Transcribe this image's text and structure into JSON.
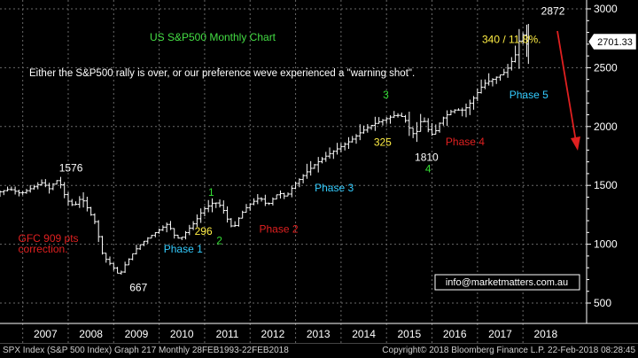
{
  "chart_data": {
    "type": "ohlc-bar",
    "title": "US S&P500 Monthly Chart",
    "subtitle": "Either the S&P500 rally is over, or our preference weve experienced a \"warning shot\".",
    "ylim": [
      450,
      3050
    ],
    "yticks": [
      500,
      1000,
      1500,
      2000,
      2500,
      3000
    ],
    "xticks": [
      "2007",
      "2008",
      "2009",
      "2010",
      "2011",
      "2012",
      "2013",
      "2014",
      "2015",
      "2016",
      "2017",
      "2018"
    ],
    "last_price": "2701.33",
    "contact": "info@marketmatters.com.au",
    "annotations": [
      {
        "text": "1576",
        "x": 2007.8,
        "y": 1620,
        "color": "#ffffff"
      },
      {
        "text": "GFC 909 pts",
        "x": 2006.9,
        "y": 1020,
        "color": "#e02020"
      },
      {
        "text": "correction.",
        "x": 2006.9,
        "y": 930,
        "color": "#e02020"
      },
      {
        "text": "667",
        "x": 2009.35,
        "y": 600,
        "color": "#ffffff"
      },
      {
        "text": "Phase 1",
        "x": 2010.1,
        "y": 930,
        "color": "#33ccff"
      },
      {
        "text": "1",
        "x": 2011.08,
        "y": 1410,
        "color": "#33dd33"
      },
      {
        "text": "296",
        "x": 2010.78,
        "y": 1080,
        "color": "#ffee44"
      },
      {
        "text": "2",
        "x": 2011.26,
        "y": 1000,
        "color": "#33dd33"
      },
      {
        "text": "Phase 2",
        "x": 2012.2,
        "y": 1100,
        "color": "#e02020"
      },
      {
        "text": "Phase 3",
        "x": 2013.42,
        "y": 1450,
        "color": "#33ccff"
      },
      {
        "text": "3",
        "x": 2014.92,
        "y": 2240,
        "color": "#33dd33"
      },
      {
        "text": "325",
        "x": 2014.72,
        "y": 1835,
        "color": "#ffee44"
      },
      {
        "text": "1810",
        "x": 2015.62,
        "y": 1710,
        "color": "#ffffff"
      },
      {
        "text": "Phase 4",
        "x": 2016.3,
        "y": 1840,
        "color": "#e02020"
      },
      {
        "text": "4",
        "x": 2015.85,
        "y": 1610,
        "color": "#33dd33"
      },
      {
        "text": "Phase 5",
        "x": 2017.7,
        "y": 2240,
        "color": "#33ccff"
      },
      {
        "text": "340 / 11.8%.",
        "x": 2017.1,
        "y": 2710,
        "color": "#ffee44"
      },
      {
        "text": "2872",
        "x": 2018.4,
        "y": 2950,
        "color": "#ffffff"
      }
    ],
    "series": [
      {
        "x": 2006.25,
        "y": 1420
      },
      {
        "x": 2006.5,
        "y": 1440
      },
      {
        "x": 2006.75,
        "y": 1470
      },
      {
        "x": 2007.0,
        "y": 1430
      },
      {
        "x": 2007.25,
        "y": 1480
      },
      {
        "x": 2007.5,
        "y": 1530
      },
      {
        "x": 2007.6,
        "y": 1460
      },
      {
        "x": 2007.75,
        "y": 1530
      },
      {
        "x": 2007.83,
        "y": 1550
      },
      {
        "x": 2008.0,
        "y": 1380
      },
      {
        "x": 2008.17,
        "y": 1320
      },
      {
        "x": 2008.33,
        "y": 1400
      },
      {
        "x": 2008.5,
        "y": 1280
      },
      {
        "x": 2008.67,
        "y": 1160
      },
      {
        "x": 2008.75,
        "y": 960
      },
      {
        "x": 2008.83,
        "y": 890
      },
      {
        "x": 2009.0,
        "y": 820
      },
      {
        "x": 2009.17,
        "y": 730
      },
      {
        "x": 2009.25,
        "y": 800
      },
      {
        "x": 2009.42,
        "y": 900
      },
      {
        "x": 2009.58,
        "y": 980
      },
      {
        "x": 2009.75,
        "y": 1040
      },
      {
        "x": 2010.0,
        "y": 1110
      },
      {
        "x": 2010.25,
        "y": 1180
      },
      {
        "x": 2010.33,
        "y": 1090
      },
      {
        "x": 2010.5,
        "y": 1040
      },
      {
        "x": 2010.67,
        "y": 1120
      },
      {
        "x": 2010.83,
        "y": 1190
      },
      {
        "x": 2011.0,
        "y": 1290
      },
      {
        "x": 2011.25,
        "y": 1360
      },
      {
        "x": 2011.42,
        "y": 1320
      },
      {
        "x": 2011.58,
        "y": 1180
      },
      {
        "x": 2011.67,
        "y": 1130
      },
      {
        "x": 2011.83,
        "y": 1250
      },
      {
        "x": 2012.0,
        "y": 1330
      },
      {
        "x": 2012.25,
        "y": 1400
      },
      {
        "x": 2012.42,
        "y": 1330
      },
      {
        "x": 2012.67,
        "y": 1440
      },
      {
        "x": 2012.83,
        "y": 1400
      },
      {
        "x": 2013.0,
        "y": 1500
      },
      {
        "x": 2013.25,
        "y": 1600
      },
      {
        "x": 2013.5,
        "y": 1690
      },
      {
        "x": 2013.75,
        "y": 1760
      },
      {
        "x": 2014.0,
        "y": 1820
      },
      {
        "x": 2014.25,
        "y": 1880
      },
      {
        "x": 2014.5,
        "y": 1960
      },
      {
        "x": 2014.75,
        "y": 2020
      },
      {
        "x": 2015.0,
        "y": 2060
      },
      {
        "x": 2015.25,
        "y": 2100
      },
      {
        "x": 2015.42,
        "y": 2080
      },
      {
        "x": 2015.58,
        "y": 1960
      },
      {
        "x": 2015.67,
        "y": 1920
      },
      {
        "x": 2015.83,
        "y": 2080
      },
      {
        "x": 2016.0,
        "y": 1940
      },
      {
        "x": 2016.08,
        "y": 1930
      },
      {
        "x": 2016.25,
        "y": 2060
      },
      {
        "x": 2016.5,
        "y": 2140
      },
      {
        "x": 2016.75,
        "y": 2140
      },
      {
        "x": 2016.92,
        "y": 2220
      },
      {
        "x": 2017.17,
        "y": 2360
      },
      {
        "x": 2017.42,
        "y": 2410
      },
      {
        "x": 2017.67,
        "y": 2470
      },
      {
        "x": 2017.92,
        "y": 2640
      },
      {
        "x": 2018.0,
        "y": 2820
      },
      {
        "x": 2018.12,
        "y": 2701
      }
    ]
  },
  "footer": {
    "left": "SPX Index (S&P 500 Index) Graph 217  Monthly 28FEB1993-22FEB2018",
    "right": "Copyright© 2018 Bloomberg Finance L.P.    22-Feb-2018 08:28:45"
  },
  "colors": {
    "background": "#000000",
    "bars": "#ffffff",
    "grid": "#6a6a6a",
    "title": "#44dd44",
    "arrow": "#e02020",
    "price_box": "#ffffff"
  }
}
